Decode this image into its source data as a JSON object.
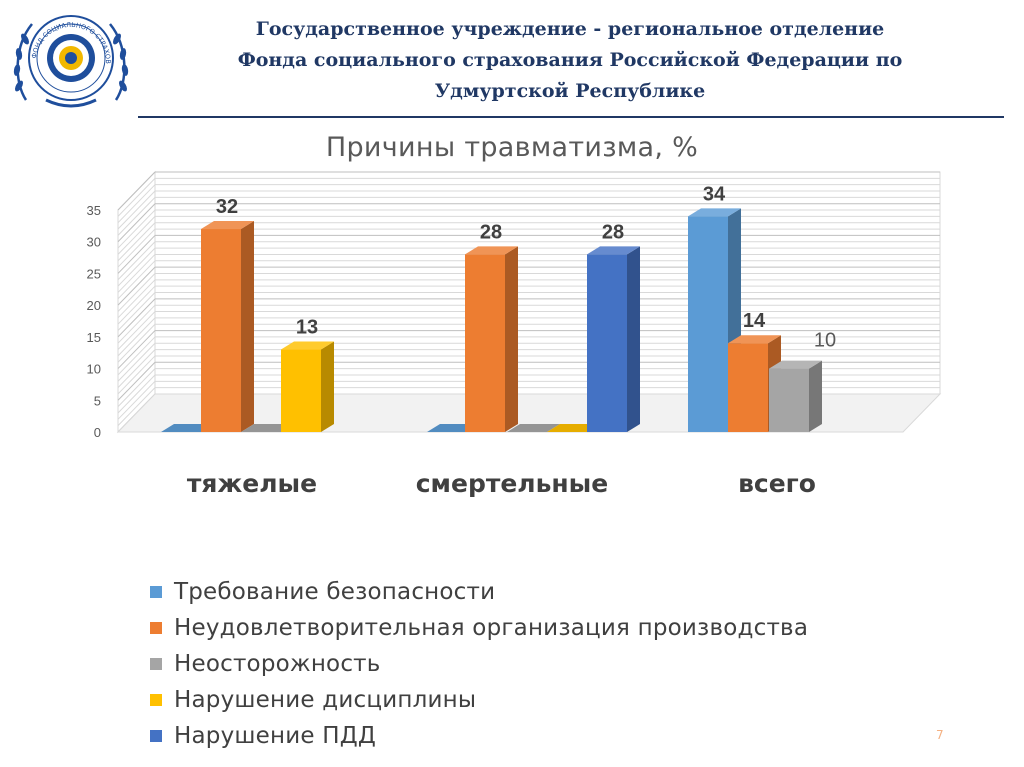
{
  "header": {
    "title_lines": [
      "Государственное учреждение - региональное отделение",
      "Фонда социального страхования Российской Федерации по",
      "Удмуртской Республике"
    ],
    "logo_text": "ФОНД СОЦИАЛЬНОГО СТРАХОВАНИЯ РОССИЙСКОЙ ФЕДЕРАЦИИ"
  },
  "page_number": "7",
  "colors": {
    "header_text": "#203864",
    "series_1": "#5b9bd5",
    "series_2": "#ed7d31",
    "series_3": "#a5a5a5",
    "series_4": "#ffc000",
    "series_5": "#4472c4"
  },
  "chart_data": {
    "type": "bar",
    "style": "3d-clustered-column",
    "title": "Причины травматизма, %",
    "categories": [
      "тяжелые",
      "смертельные",
      "всего"
    ],
    "series": [
      {
        "name": "Требование безопасности",
        "color": "#5b9bd5",
        "values": [
          0,
          0,
          34
        ]
      },
      {
        "name": "Неудовлетворительная организация производства",
        "color": "#ed7d31",
        "values": [
          32,
          28,
          14
        ]
      },
      {
        "name": "Неосторожность",
        "color": "#a5a5a5",
        "values": [
          0,
          0,
          10
        ]
      },
      {
        "name": "Нарушение дисциплины",
        "color": "#ffc000",
        "values": [
          13,
          0,
          0
        ]
      },
      {
        "name": "Нарушение ПДД",
        "color": "#4472c4",
        "values": [
          0,
          28,
          0
        ]
      }
    ],
    "data_labels": [
      {
        "series": 1,
        "category": 0,
        "text": "32"
      },
      {
        "series": 3,
        "category": 0,
        "text": "13"
      },
      {
        "series": 1,
        "category": 1,
        "text": "28"
      },
      {
        "series": 4,
        "category": 1,
        "text": "28"
      },
      {
        "series": 0,
        "category": 2,
        "text": "34"
      },
      {
        "series": 1,
        "category": 2,
        "text": "14"
      },
      {
        "series": 2,
        "category": 2,
        "text": "10"
      }
    ],
    "y_ticks": [
      "0",
      "5",
      "10",
      "15",
      "20",
      "25",
      "30",
      "35"
    ],
    "ylim": [
      0,
      35
    ],
    "grid": true,
    "legend_position": "bottom"
  }
}
